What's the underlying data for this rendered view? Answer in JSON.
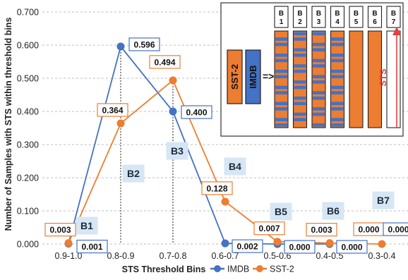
{
  "chart_data": {
    "type": "line",
    "categories": [
      "0.9-1.0",
      "0.8-0.9",
      "0.7-0.8",
      "0.6-0.7",
      "0.5-0.6",
      "0.4-0.5",
      "0.3-0.4"
    ],
    "series": [
      {
        "name": "IMDB",
        "color": "#4472c4",
        "values": [
          0.001,
          0.596,
          0.4,
          0.002,
          0.0,
          0.0,
          null
        ],
        "labels": [
          "0.001",
          "0.596",
          "0.400",
          "0.002",
          "0.000",
          "0.000",
          null
        ]
      },
      {
        "name": "SST-2",
        "color": "#ed7d31",
        "values": [
          0.003,
          0.364,
          0.494,
          0.128,
          0.007,
          0.003,
          0.0
        ],
        "labels": [
          "0.003",
          "0.364",
          "0.494",
          "0.128",
          "0.007",
          "0.003",
          "0.000"
        ]
      }
    ],
    "extra_label": "0.000",
    "xlabel": "STS Threshold Bins",
    "ylabel": "Number of Samples with STS within threshold bins",
    "yticks": [
      "0.000",
      "0.100",
      "0.200",
      "0.300",
      "0.400",
      "0.500",
      "0.600",
      "0.700"
    ],
    "ylim": [
      0,
      0.7
    ],
    "grid": "horizontal dashed",
    "legend": "bottom",
    "bin_labels": [
      "B1",
      "B2",
      "B3",
      "B4",
      "B5",
      "B6",
      "B7"
    ]
  },
  "inset": {
    "sst2_label": "SST-2",
    "imdb_label": "IMDB",
    "arrow_label": "=>",
    "sts_label": "STS",
    "column_tops": [
      "B\n1",
      "B\n2",
      "B\n3",
      "B\n4",
      "B\n5",
      "B\n6",
      "B\n7"
    ],
    "column_kinds": [
      "mixed",
      "mixed",
      "mixed",
      "mixed",
      "sst2",
      "sst2",
      "empty"
    ],
    "colors": {
      "sst2": "#ed7d31",
      "imdb": "#4472c4",
      "sts_arrow": "#e8403a"
    }
  }
}
